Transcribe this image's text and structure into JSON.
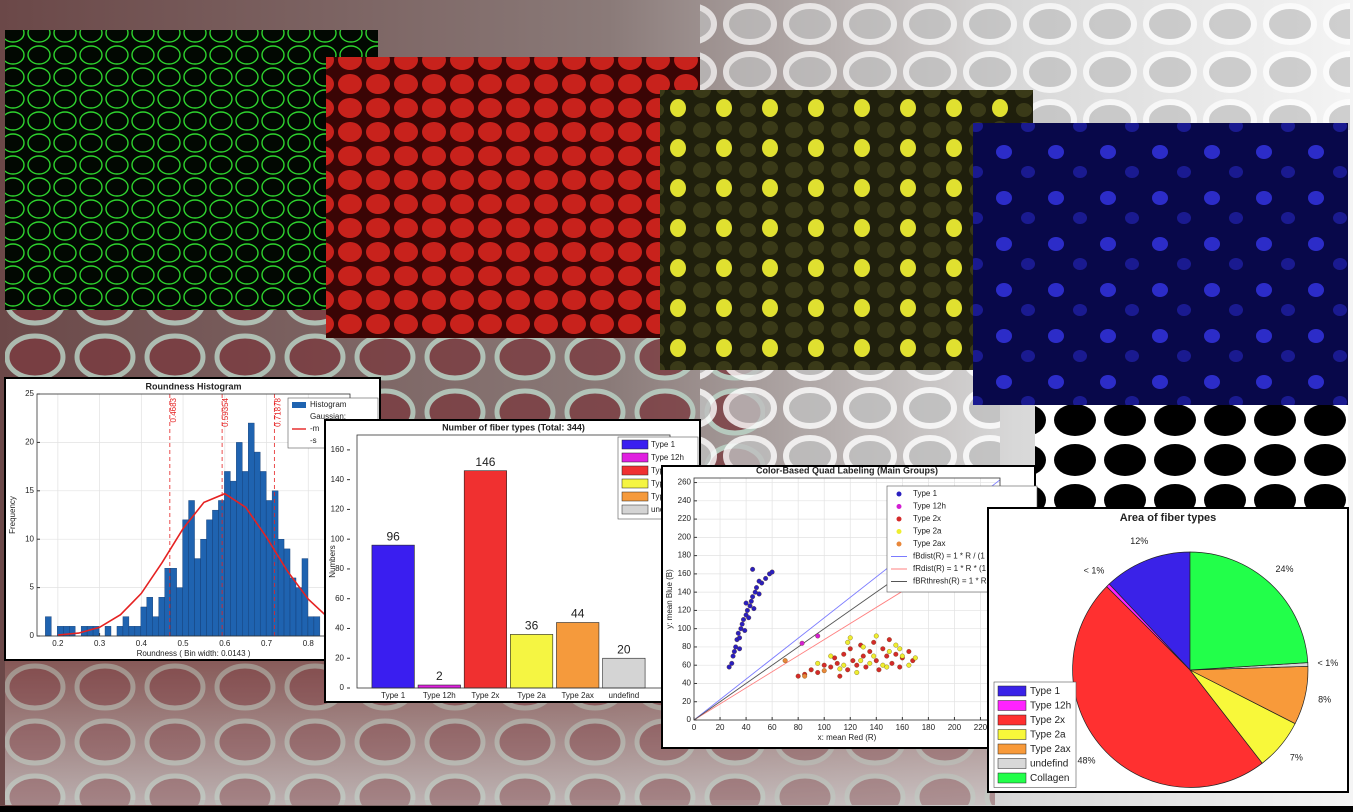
{
  "chart_data": [
    {
      "type": "histogram",
      "title": "Roundness Histogram",
      "xlabel": "Roundness ( Bin width: 0.0143 )",
      "ylabel": "Frequency",
      "bins": [
        0.17,
        0.1843,
        0.1986,
        0.2129,
        0.2272,
        0.2415,
        0.2558,
        0.2701,
        0.2844,
        0.2987,
        0.313,
        0.3273,
        0.3416,
        0.3559,
        0.3702,
        0.3845,
        0.3988,
        0.4131,
        0.4274,
        0.4417,
        0.456,
        0.4703,
        0.4846,
        0.4989,
        0.5132,
        0.5275,
        0.5418,
        0.5561,
        0.5704,
        0.5847,
        0.599,
        0.6133,
        0.6276,
        0.6419,
        0.6562,
        0.6705,
        0.6848,
        0.6991,
        0.7134,
        0.7277,
        0.742,
        0.7563,
        0.7706,
        0.7849,
        0.7992,
        0.8135,
        0.8278
      ],
      "counts": [
        2,
        0,
        1,
        1,
        1,
        0,
        1,
        1,
        1,
        0,
        1,
        0,
        1,
        2,
        1,
        1,
        3,
        4,
        2,
        4,
        7,
        7,
        5,
        12,
        14,
        8,
        10,
        12,
        13,
        14,
        17,
        16,
        20,
        17,
        22,
        19,
        17,
        14,
        15,
        10,
        9,
        6,
        5,
        8,
        2,
        2
      ],
      "color": "#1f63b0",
      "curve": {
        "color": "#e52222",
        "x": [
          0.2,
          0.25,
          0.3,
          0.35,
          0.4,
          0.45,
          0.5,
          0.55,
          0.6,
          0.65,
          0.7,
          0.75,
          0.8,
          0.85
        ],
        "values": [
          0.1,
          0.3,
          0.9,
          2.2,
          4.4,
          7.6,
          11.1,
          13.8,
          14.7,
          13.3,
          10.2,
          6.7,
          3.8,
          1.8
        ]
      },
      "markers": [
        0.4683,
        0.59354,
        0.71878
      ],
      "legend": [
        "Histogram",
        "Gaussian:",
        "-m",
        "-s"
      ],
      "xlim": [
        0.15,
        0.9
      ],
      "xticks": [
        0.2,
        0.3,
        0.4,
        0.5,
        0.6,
        0.7,
        0.8
      ],
      "ylim": [
        0,
        25
      ],
      "yticks": [
        0,
        5,
        10,
        15,
        20,
        25
      ],
      "grid": true
    },
    {
      "type": "bar",
      "title": "Number of fiber types (Total: 344)",
      "ylabel": "Numbers",
      "categories": [
        "Type 1",
        "Type 12h",
        "Type 2x",
        "Type 2a",
        "Type 2ax",
        "undefind"
      ],
      "values": [
        96,
        2,
        146,
        36,
        44,
        20
      ],
      "colors": [
        "#3a1ef0",
        "#e020e0",
        "#f03030",
        "#f5f542",
        "#f59a3c",
        "#d4d4d4"
      ],
      "ylim": [
        0,
        170
      ],
      "yticks": [
        0,
        20,
        40,
        60,
        80,
        100,
        120,
        140,
        160
      ],
      "grid": false
    },
    {
      "type": "scatter",
      "title": "Color-Based Quad Labeling (Main Groups)",
      "xlabel": "x: mean Red (R)",
      "ylabel": "y: mean Blue (B)",
      "series": [
        {
          "name": "Type 1",
          "color": "#2a1fbf",
          "x": [
            27,
            29,
            30,
            31,
            32,
            33,
            34,
            35,
            36,
            37,
            38,
            39,
            40,
            41,
            42,
            43,
            44,
            45,
            46,
            47,
            48,
            50,
            52,
            55,
            58,
            45,
            35,
            40,
            50,
            60
          ],
          "values": [
            58,
            62,
            70,
            75,
            80,
            88,
            95,
            90,
            100,
            105,
            110,
            98,
            115,
            120,
            112,
            125,
            130,
            135,
            122,
            140,
            145,
            138,
            150,
            155,
            160,
            165,
            78,
            128,
            152,
            162
          ]
        },
        {
          "name": "Type 12h",
          "color": "#d21fd2",
          "x": [
            83,
            95
          ],
          "values": [
            84,
            92
          ]
        },
        {
          "name": "Type 2x",
          "color": "#d42a2a",
          "x": [
            80,
            85,
            90,
            95,
            100,
            105,
            108,
            110,
            115,
            118,
            120,
            122,
            125,
            128,
            130,
            132,
            135,
            138,
            140,
            142,
            145,
            148,
            150,
            152,
            155,
            158,
            160,
            165,
            168,
            112
          ],
          "values": [
            48,
            50,
            55,
            52,
            60,
            58,
            68,
            62,
            72,
            55,
            78,
            65,
            60,
            82,
            70,
            58,
            75,
            85,
            65,
            55,
            78,
            70,
            88,
            62,
            72,
            58,
            68,
            75,
            65,
            48
          ]
        },
        {
          "name": "Type 2a",
          "color": "#eeee30",
          "x": [
            95,
            105,
            115,
            120,
            125,
            130,
            135,
            140,
            145,
            150,
            155,
            160,
            165,
            170,
            118,
            128,
            138,
            148,
            158,
            112
          ],
          "values": [
            62,
            70,
            60,
            90,
            52,
            80,
            62,
            92,
            60,
            75,
            82,
            70,
            60,
            68,
            85,
            65,
            70,
            58,
            78,
            56
          ]
        },
        {
          "name": "Type 2ax",
          "color": "#e8873a",
          "x": [
            70,
            85,
            100
          ],
          "values": [
            65,
            48,
            54
          ]
        }
      ],
      "lines": [
        {
          "name": "fBdist(R) = 1 * R / (1",
          "color": "#7b7bff",
          "x": [
            0,
            235
          ],
          "values": [
            0,
            263
          ]
        },
        {
          "name": "fRdist(R) = 1 * R * (1",
          "color": "#ff8080",
          "x": [
            0,
            235
          ],
          "values": [
            0,
            207
          ]
        },
        {
          "name": "fBRthresh(R) = 1 * R",
          "color": "#555555",
          "x": [
            0,
            235
          ],
          "values": [
            0,
            235
          ]
        }
      ],
      "xlim": [
        0,
        235
      ],
      "xticks": [
        0,
        20,
        40,
        60,
        80,
        100,
        120,
        140,
        160,
        180,
        200,
        220
      ],
      "ylim": [
        0,
        265
      ],
      "yticks": [
        0,
        20,
        40,
        60,
        80,
        100,
        120,
        140,
        160,
        180,
        200,
        220,
        240,
        260
      ],
      "grid": true
    },
    {
      "type": "pie",
      "title": "Area of fiber types",
      "categories": [
        "Type 1",
        "Type 12h",
        "Type 2x",
        "Type 2a",
        "Type 2ax",
        "undefind",
        "Collagen"
      ],
      "values": [
        12,
        0.5,
        48,
        7,
        8,
        0.5,
        24
      ],
      "value_labels": [
        "12%",
        "< 1%",
        "48%",
        "7%",
        "8%",
        "< 1%",
        "24%"
      ],
      "colors": [
        "#3a22e8",
        "#ff22ff",
        "#ff3030",
        "#f8f83a",
        "#f89a3a",
        "#d8d8d8",
        "#22ff4a"
      ]
    }
  ]
}
